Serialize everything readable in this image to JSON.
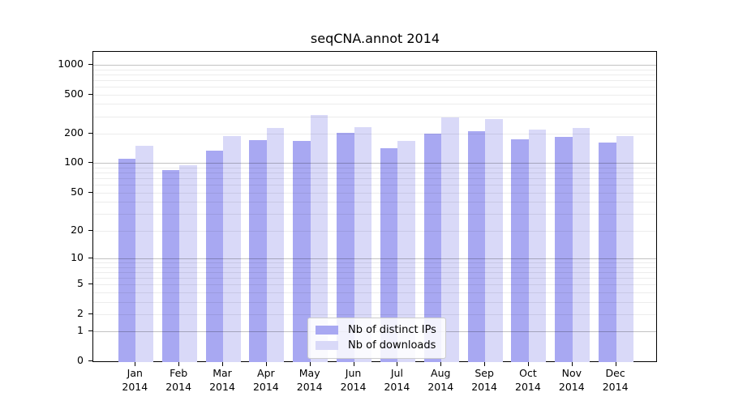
{
  "title": "seqCNA.annot 2014",
  "chart_data": {
    "type": "bar",
    "title": "seqCNA.annot 2014",
    "categories": [
      "Jan",
      "Feb",
      "Mar",
      "Apr",
      "May",
      "Jun",
      "Jul",
      "Aug",
      "Sep",
      "Oct",
      "Nov",
      "Dec"
    ],
    "category_year": "2014",
    "series": [
      {
        "name": "Nb of distinct IPs",
        "color": "#a8a8f2",
        "values": [
          112,
          85,
          135,
          172,
          170,
          203,
          143,
          200,
          213,
          176,
          185,
          162
        ]
      },
      {
        "name": "Nb of downloads",
        "color": "#d9d9f8",
        "values": [
          150,
          96,
          190,
          230,
          310,
          234,
          168,
          292,
          281,
          219,
          229,
          188
        ]
      }
    ],
    "y_scale": "log10(value+1)",
    "y_ticks": [
      0,
      1,
      2,
      5,
      10,
      20,
      50,
      100,
      200,
      500,
      1000
    ],
    "ylim": [
      0,
      1350
    ],
    "grid": "horizontal minor lines each decade, darker lines at 1/10/100/1000",
    "legend_position": "inside bottom-center"
  },
  "colors": {
    "distinct_ips_bar": "#a8a8f2",
    "downloads_bar": "#d9d9f8",
    "axis": "#000000",
    "grid_minor": "#ececec",
    "grid_major": "#c2c2c2",
    "background": "#ffffff"
  }
}
